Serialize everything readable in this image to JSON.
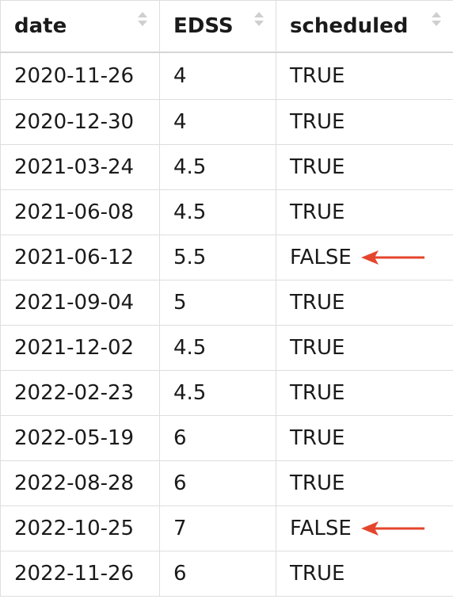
{
  "table": {
    "columns": [
      {
        "label": "date"
      },
      {
        "label": "EDSS"
      },
      {
        "label": "scheduled"
      }
    ],
    "rows": [
      {
        "date": "2020-11-26",
        "edss": "4",
        "scheduled": "TRUE",
        "marked": false
      },
      {
        "date": "2020-12-30",
        "edss": "4",
        "scheduled": "TRUE",
        "marked": false
      },
      {
        "date": "2021-03-24",
        "edss": "4.5",
        "scheduled": "TRUE",
        "marked": false
      },
      {
        "date": "2021-06-08",
        "edss": "4.5",
        "scheduled": "TRUE",
        "marked": false
      },
      {
        "date": "2021-06-12",
        "edss": "5.5",
        "scheduled": "FALSE",
        "marked": true
      },
      {
        "date": "2021-09-04",
        "edss": "5",
        "scheduled": "TRUE",
        "marked": false
      },
      {
        "date": "2021-12-02",
        "edss": "4.5",
        "scheduled": "TRUE",
        "marked": false
      },
      {
        "date": "2022-02-23",
        "edss": "4.5",
        "scheduled": "TRUE",
        "marked": false
      },
      {
        "date": "2022-05-19",
        "edss": "6",
        "scheduled": "TRUE",
        "marked": false
      },
      {
        "date": "2022-08-28",
        "edss": "6",
        "scheduled": "TRUE",
        "marked": false
      },
      {
        "date": "2022-10-25",
        "edss": "7",
        "scheduled": "FALSE",
        "marked": true
      },
      {
        "date": "2022-11-26",
        "edss": "6",
        "scheduled": "TRUE",
        "marked": false
      }
    ]
  },
  "icons": {
    "sort": "sort-arrows-icon",
    "annotation": "left-arrow-icon"
  },
  "colors": {
    "annotation_arrow": "#e5452d",
    "sort_icon": "#cfcfcf",
    "grid": "#dedede"
  }
}
